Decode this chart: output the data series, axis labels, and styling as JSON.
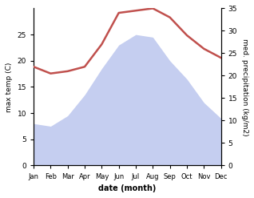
{
  "months": [
    "Jan",
    "Feb",
    "Mar",
    "Apr",
    "May",
    "Jun",
    "Jul",
    "Aug",
    "Sep",
    "Oct",
    "Nov",
    "Dec"
  ],
  "max_temp": [
    8.0,
    7.5,
    9.5,
    13.5,
    18.5,
    23.0,
    25.0,
    24.5,
    20.0,
    16.5,
    12.0,
    9.0
  ],
  "precipitation": [
    22.0,
    20.5,
    21.0,
    22.0,
    27.0,
    34.0,
    34.5,
    35.0,
    33.0,
    29.0,
    26.0,
    24.0
  ],
  "temp_fill_color": "#c5cef0",
  "line_color": "#c0504d",
  "ylabel_left": "max temp (C)",
  "ylabel_right": "med. precipitation (kg/m2)",
  "xlabel": "date (month)",
  "ylim_left": [
    0,
    30
  ],
  "ylim_right": [
    0,
    35
  ],
  "yticks_left": [
    0,
    5,
    10,
    15,
    20,
    25
  ],
  "yticks_right": [
    0,
    5,
    10,
    15,
    20,
    25,
    30,
    35
  ]
}
